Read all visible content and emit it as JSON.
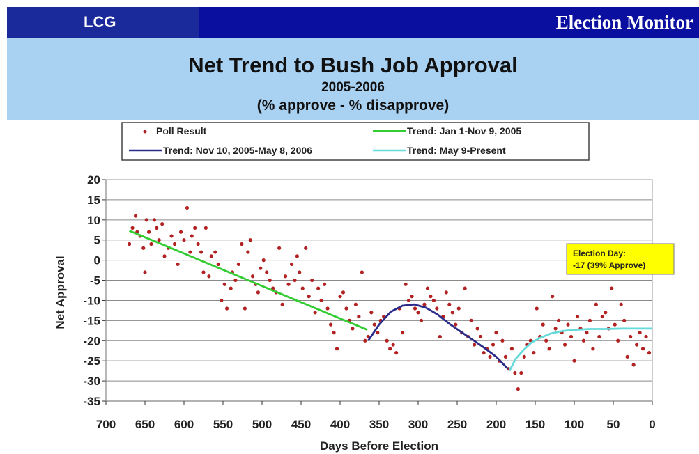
{
  "header": {
    "brand": "LCG",
    "section": "Election Monitor"
  },
  "colors": {
    "brand_bar": "#1a2a9a",
    "section_bar": "#0a0fa0",
    "title_band": "#a9d1f2",
    "poll_dots": "#b22222",
    "trend_2005": "#33cc33",
    "trend_2006": "#2b2b8a",
    "trend_recent": "#66d9d9",
    "callout_fill": "#ffff00"
  },
  "chart_data": {
    "type": "scatter",
    "title": "Net Trend to Bush Job Approval",
    "subtitle": "2005-2006",
    "subtitle2": "(% approve - % disapprove)",
    "xlabel": "Days Before Election",
    "ylabel": "Net Approval",
    "xlim": [
      700,
      0
    ],
    "ylim": [
      -35,
      20
    ],
    "x_ticks": [
      700,
      650,
      600,
      550,
      500,
      450,
      400,
      350,
      300,
      250,
      200,
      150,
      100,
      50,
      0
    ],
    "y_ticks": [
      20,
      15,
      10,
      5,
      0,
      -5,
      -10,
      -15,
      -20,
      -25,
      -30,
      -35
    ],
    "grid": "horizontal",
    "legend": {
      "position": "top",
      "entries": [
        {
          "label": "Poll Result",
          "kind": "marker",
          "color": "#b22222"
        },
        {
          "label": "Trend: Jan 1-Nov 9, 2005",
          "kind": "line",
          "color": "#33cc33"
        },
        {
          "label": "Trend: Nov 10, 2005-May 8, 2006",
          "kind": "line",
          "color": "#2b2b8a"
        },
        {
          "label": "Trend: May 9-Present",
          "kind": "line",
          "color": "#66d9d9"
        }
      ]
    },
    "annotation": {
      "line1": "Election Day:",
      "line2": "-17 (39% Approve)",
      "x": 0,
      "y": -17
    },
    "series": [
      {
        "name": "Poll Result",
        "kind": "scatter",
        "color": "#b22222",
        "points": [
          [
            670,
            4
          ],
          [
            666,
            8
          ],
          [
            662,
            11
          ],
          [
            660,
            7
          ],
          [
            656,
            6
          ],
          [
            652,
            3
          ],
          [
            650,
            -3
          ],
          [
            648,
            10
          ],
          [
            645,
            7
          ],
          [
            642,
            4
          ],
          [
            638,
            10
          ],
          [
            635,
            8
          ],
          [
            632,
            5
          ],
          [
            628,
            9
          ],
          [
            625,
            1
          ],
          [
            620,
            3
          ],
          [
            616,
            6
          ],
          [
            612,
            4
          ],
          [
            608,
            -1
          ],
          [
            604,
            7
          ],
          [
            600,
            5
          ],
          [
            596,
            13
          ],
          [
            592,
            2
          ],
          [
            590,
            6
          ],
          [
            586,
            8
          ],
          [
            582,
            4
          ],
          [
            578,
            2
          ],
          [
            575,
            -3
          ],
          [
            572,
            8
          ],
          [
            568,
            -4
          ],
          [
            565,
            1
          ],
          [
            560,
            2
          ],
          [
            556,
            -1
          ],
          [
            552,
            -10
          ],
          [
            548,
            -6
          ],
          [
            545,
            -12
          ],
          [
            540,
            -7
          ],
          [
            538,
            -3
          ],
          [
            534,
            -5
          ],
          [
            530,
            -1
          ],
          [
            526,
            4
          ],
          [
            522,
            -12
          ],
          [
            518,
            2
          ],
          [
            515,
            5
          ],
          [
            512,
            -4
          ],
          [
            508,
            -6
          ],
          [
            505,
            -8
          ],
          [
            502,
            -2
          ],
          [
            498,
            0
          ],
          [
            494,
            -3
          ],
          [
            490,
            -5
          ],
          [
            486,
            -7
          ],
          [
            482,
            -8
          ],
          [
            478,
            3
          ],
          [
            474,
            -11
          ],
          [
            470,
            -4
          ],
          [
            466,
            -6
          ],
          [
            462,
            -1
          ],
          [
            458,
            -5
          ],
          [
            455,
            1
          ],
          [
            452,
            -3
          ],
          [
            448,
            -7
          ],
          [
            444,
            3
          ],
          [
            440,
            -9
          ],
          [
            436,
            -5
          ],
          [
            432,
            -13
          ],
          [
            428,
            -7
          ],
          [
            424,
            -10
          ],
          [
            420,
            -6
          ],
          [
            416,
            -12
          ],
          [
            412,
            -16
          ],
          [
            408,
            -18
          ],
          [
            404,
            -22
          ],
          [
            400,
            -9
          ],
          [
            396,
            -8
          ],
          [
            392,
            -12
          ],
          [
            388,
            -15
          ],
          [
            384,
            -17
          ],
          [
            380,
            -11
          ],
          [
            376,
            -14
          ],
          [
            372,
            -3
          ],
          [
            368,
            -20
          ],
          [
            364,
            -19
          ],
          [
            360,
            -13
          ],
          [
            356,
            -16
          ],
          [
            352,
            -18
          ],
          [
            348,
            -15
          ],
          [
            344,
            -14
          ],
          [
            340,
            -20
          ],
          [
            336,
            -22
          ],
          [
            332,
            -21
          ],
          [
            328,
            -23
          ],
          [
            324,
            -12
          ],
          [
            320,
            -18
          ],
          [
            316,
            -6
          ],
          [
            312,
            -10
          ],
          [
            308,
            -9
          ],
          [
            304,
            -12
          ],
          [
            300,
            -13
          ],
          [
            296,
            -15
          ],
          [
            292,
            -11
          ],
          [
            288,
            -7
          ],
          [
            284,
            -9
          ],
          [
            280,
            -10
          ],
          [
            276,
            -12
          ],
          [
            272,
            -19
          ],
          [
            268,
            -14
          ],
          [
            264,
            -8
          ],
          [
            260,
            -11
          ],
          [
            256,
            -13
          ],
          [
            252,
            -16
          ],
          [
            248,
            -12
          ],
          [
            244,
            -18
          ],
          [
            240,
            -7
          ],
          [
            236,
            -19
          ],
          [
            232,
            -15
          ],
          [
            228,
            -21
          ],
          [
            224,
            -17
          ],
          [
            220,
            -19
          ],
          [
            216,
            -23
          ],
          [
            212,
            -22
          ],
          [
            208,
            -24
          ],
          [
            204,
            -21
          ],
          [
            200,
            -18
          ],
          [
            196,
            -25
          ],
          [
            192,
            -20
          ],
          [
            188,
            -24
          ],
          [
            184,
            -27
          ],
          [
            180,
            -22
          ],
          [
            176,
            -28
          ],
          [
            172,
            -32
          ],
          [
            168,
            -28
          ],
          [
            164,
            -24
          ],
          [
            160,
            -21
          ],
          [
            156,
            -20
          ],
          [
            152,
            -23
          ],
          [
            148,
            -12
          ],
          [
            144,
            -19
          ],
          [
            140,
            -16
          ],
          [
            136,
            -20
          ],
          [
            132,
            -22
          ],
          [
            128,
            -9
          ],
          [
            124,
            -17
          ],
          [
            120,
            -15
          ],
          [
            116,
            -18
          ],
          [
            112,
            -21
          ],
          [
            108,
            -16
          ],
          [
            104,
            -19
          ],
          [
            100,
            -25
          ],
          [
            96,
            -14
          ],
          [
            92,
            -17
          ],
          [
            88,
            -20
          ],
          [
            84,
            -18
          ],
          [
            80,
            -15
          ],
          [
            76,
            -22
          ],
          [
            72,
            -11
          ],
          [
            68,
            -19
          ],
          [
            64,
            -14
          ],
          [
            60,
            -13
          ],
          [
            56,
            -17
          ],
          [
            52,
            -7
          ],
          [
            48,
            -16
          ],
          [
            44,
            -20
          ],
          [
            40,
            -11
          ],
          [
            36,
            -15
          ],
          [
            32,
            -24
          ],
          [
            28,
            -19
          ],
          [
            24,
            -26
          ],
          [
            20,
            -21
          ],
          [
            16,
            -18
          ],
          [
            12,
            -22
          ],
          [
            8,
            -19
          ],
          [
            4,
            -23
          ]
        ]
      },
      {
        "name": "Trend: Jan 1-Nov 9, 2005",
        "kind": "line",
        "color": "#33cc33",
        "points": [
          [
            670,
            7.3
          ],
          [
            365,
            -17.3
          ]
        ]
      },
      {
        "name": "Trend: Nov 10, 2005-May 8, 2006",
        "kind": "line",
        "color": "#2b2b8a",
        "points": [
          [
            364,
            -20
          ],
          [
            350,
            -16
          ],
          [
            335,
            -12.8
          ],
          [
            320,
            -11.3
          ],
          [
            305,
            -11
          ],
          [
            290,
            -11.8
          ],
          [
            275,
            -13.5
          ],
          [
            260,
            -15.8
          ],
          [
            245,
            -17.8
          ],
          [
            230,
            -19.8
          ],
          [
            215,
            -21.8
          ],
          [
            200,
            -24
          ],
          [
            185,
            -27
          ]
        ]
      },
      {
        "name": "Trend: May 9-Present",
        "kind": "line",
        "color": "#66d9d9",
        "points": [
          [
            183,
            -27.5
          ],
          [
            175,
            -24.5
          ],
          [
            165,
            -22.3
          ],
          [
            155,
            -20.5
          ],
          [
            145,
            -19.4
          ],
          [
            130,
            -18.2
          ],
          [
            115,
            -17.6
          ],
          [
            100,
            -17.3
          ],
          [
            80,
            -17.1
          ],
          [
            60,
            -17.1
          ],
          [
            40,
            -17
          ],
          [
            20,
            -17
          ],
          [
            0,
            -17
          ]
        ]
      }
    ]
  }
}
